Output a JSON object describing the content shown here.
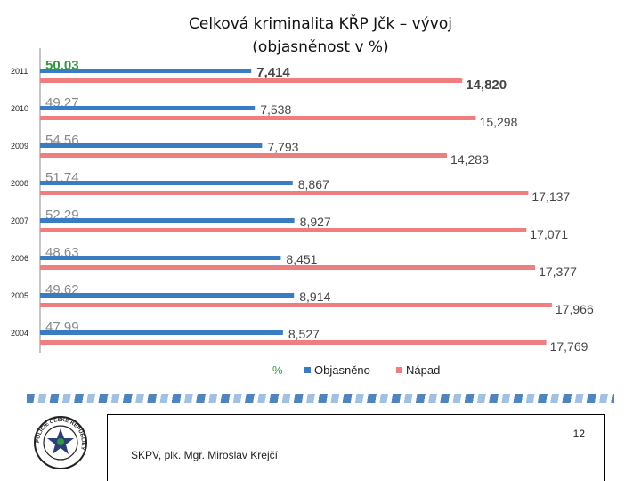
{
  "title_line1": "Celková kriminalita KŘP Jčk – vývoj",
  "title_line2": "(objasněnost v %)",
  "chart_data": {
    "type": "bar",
    "orientation": "horizontal",
    "categories": [
      "2011",
      "2010",
      "2009",
      "2008",
      "2007",
      "2006",
      "2005",
      "2004"
    ],
    "series": [
      {
        "name": "%",
        "values": [
          50.03,
          49.27,
          54.56,
          51.74,
          52.29,
          48.63,
          49.62,
          47.99
        ],
        "labels": [
          "50.03",
          "49.27",
          "54.56",
          "51.74",
          "52.29",
          "48.63",
          "49.62",
          "47.99"
        ],
        "color": "#2e9a3a"
      },
      {
        "name": "Objasněno",
        "values": [
          7414,
          7538,
          7793,
          8867,
          8927,
          8451,
          8914,
          8527
        ],
        "labels": [
          "7,414",
          "7,538",
          "7,793",
          "8,867",
          "8,927",
          "8,451",
          "8,914",
          "8,527"
        ],
        "color": "#3a7cc3"
      },
      {
        "name": "Nápad",
        "values": [
          14820,
          15298,
          14283,
          17137,
          17071,
          17377,
          17966,
          17769
        ],
        "labels": [
          "14,820",
          "15,298",
          "14,283",
          "17,137",
          "17,071",
          "17,377",
          "17,966",
          "17,769"
        ],
        "color": "#f07e7e"
      }
    ],
    "highlight_category": "2011",
    "legend": [
      "%",
      "Objasněno",
      "Nápad"
    ],
    "legend_position": "bottom"
  },
  "footer": {
    "page_number": "12",
    "author": "SKPV, plk. Mgr. Miroslav Krejčí"
  },
  "logo": {
    "text": "POLICIE ČESKÉ REPUBLIKY",
    "icon": "police-star-badge-icon"
  }
}
